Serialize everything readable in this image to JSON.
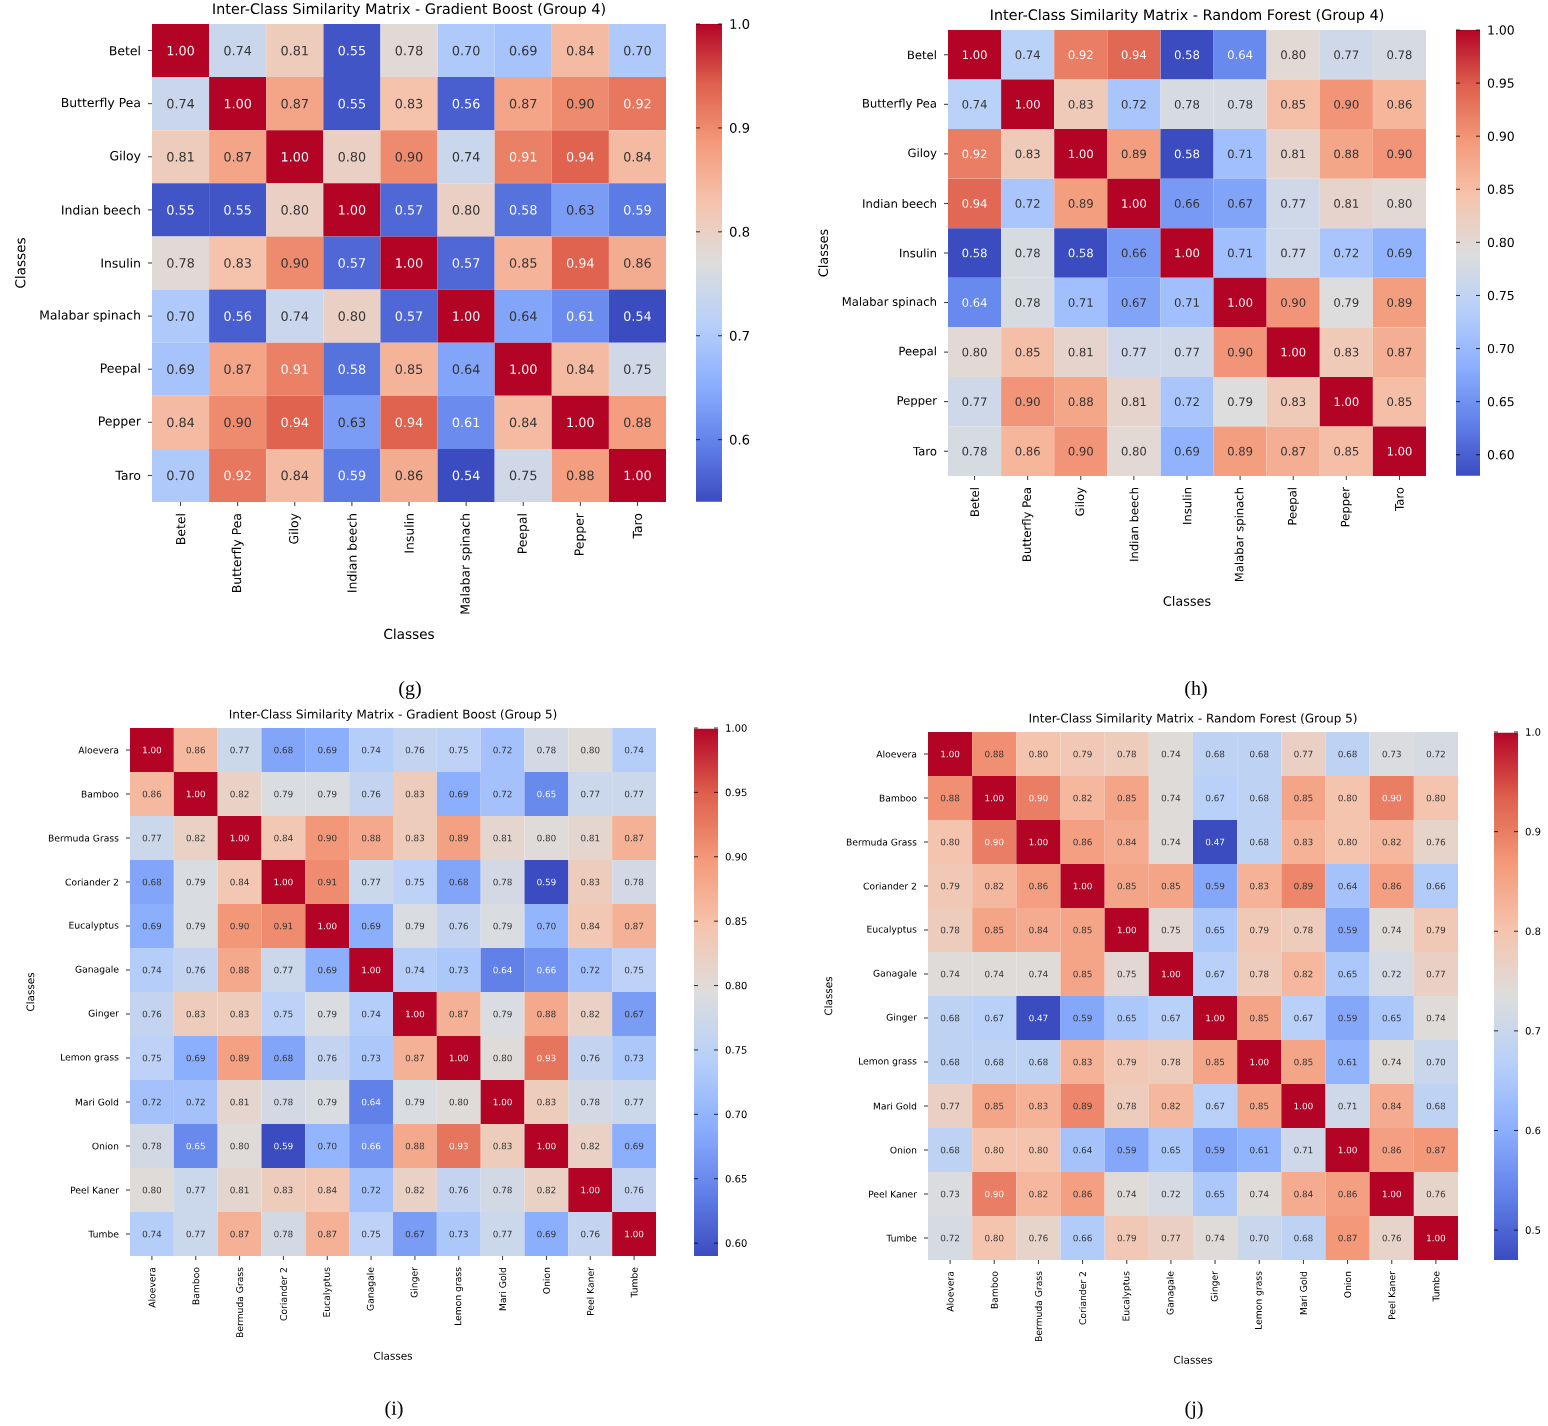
{
  "chart_data": [
    {
      "type": "heatmap",
      "title": "Inter-Class Similarity Matrix - Gradient Boost (Group 4)",
      "xlabel": "Classes",
      "ylabel": "Classes",
      "categories": [
        "Betel",
        "Butterfly Pea",
        "Giloy",
        "Indian beech",
        "Insulin",
        "Malabar spinach",
        "Peepal",
        "Pepper",
        "Taro"
      ],
      "y_categories": [
        "Betel",
        "Butterfly Pea",
        "Giloy",
        "Indian beech",
        "Insulin",
        "Malabar spinach",
        "Peepal",
        "Pepper",
        "Taro"
      ],
      "cells": [
        [
          1.0,
          0.74,
          0.81,
          0.55,
          0.78,
          0.7,
          0.69,
          0.84,
          0.7
        ],
        [
          0.74,
          1.0,
          0.87,
          0.55,
          0.83,
          0.56,
          0.87,
          0.9,
          0.92
        ],
        [
          0.81,
          0.87,
          1.0,
          0.8,
          0.9,
          0.74,
          0.91,
          0.94,
          0.84
        ],
        [
          0.55,
          0.55,
          0.8,
          1.0,
          0.57,
          0.8,
          0.58,
          0.63,
          0.59
        ],
        [
          0.78,
          0.83,
          0.9,
          0.57,
          1.0,
          0.57,
          0.85,
          0.94,
          0.86
        ],
        [
          0.7,
          0.56,
          0.74,
          0.8,
          0.57,
          1.0,
          0.64,
          0.61,
          0.54
        ],
        [
          0.69,
          0.87,
          0.91,
          0.58,
          0.85,
          0.64,
          1.0,
          0.84,
          0.75
        ],
        [
          0.84,
          0.9,
          0.94,
          0.63,
          0.94,
          0.61,
          0.84,
          1.0,
          0.88
        ],
        [
          0.7,
          0.92,
          0.84,
          0.59,
          0.86,
          0.54,
          0.75,
          0.88,
          1.0
        ]
      ],
      "cell_labels": [
        [
          "1.00",
          "0.74",
          "0.81",
          "0.55",
          "0.78",
          "0.70",
          "0.69",
          "0.84",
          "0.70"
        ],
        [
          "0.74",
          "1.00",
          "0.87",
          "0.55",
          "0.83",
          "0.56",
          "0.87",
          "0.90",
          "0.92"
        ],
        [
          "0.81",
          "0.87",
          "1.00",
          "0.80",
          "0.90",
          "0.74",
          "0.91",
          "0.94",
          "0.84"
        ],
        [
          "0.55",
          "0.55",
          "0.80",
          "1.00",
          "0.57",
          "0.80",
          "0.58",
          "0.63",
          "0.59"
        ],
        [
          "0.78",
          "0.83",
          "0.90",
          "0.57",
          "1.00",
          "0.57",
          "0.85",
          "0.94",
          "0.86"
        ],
        [
          "0.70",
          "0.56",
          "0.74",
          "0.80",
          "0.57",
          "1.00",
          "0.64",
          "0.61",
          "0.54"
        ],
        [
          "0.69",
          "0.87",
          "0.91",
          "0.58",
          "0.85",
          "0.64",
          "1.00",
          "0.84",
          "0.75"
        ],
        [
          "0.84",
          "0.90",
          "0.94",
          "0.63",
          "0.94",
          "0.61",
          "0.84",
          "1.00",
          "0.88"
        ],
        [
          "0.70",
          "0.92",
          "0.84",
          "0.59",
          "0.86",
          "0.54",
          "0.75",
          "0.88",
          "1.00"
        ]
      ],
      "clim": [
        0.54,
        1.0
      ],
      "cticks": [
        0.6,
        0.7,
        0.8,
        0.9,
        {
          "value": 1,
          "label": "1.0"
        }
      ],
      "annotations": [
        "(g)"
      ]
    },
    {
      "type": "heatmap",
      "title": "Inter-Class Similarity Matrix - Random Forest (Group 4)",
      "xlabel": "Classes",
      "ylabel": "Classes",
      "categories": [
        "Betel",
        "Butterfly Pea",
        "Giloy",
        "Indian beech",
        "Insulin",
        "Malabar spinach",
        "Peepal",
        "Pepper",
        "Taro"
      ],
      "y_categories": [
        "Betel",
        "Butterfly Pea",
        "Giloy",
        "Indian beech",
        "Insulin",
        "Malabar spinach",
        "Peepal",
        "Pepper",
        "Taro"
      ],
      "cells": [
        [
          1.0,
          0.74,
          0.92,
          0.94,
          0.58,
          0.64,
          0.8,
          0.77,
          0.78
        ],
        [
          0.74,
          1.0,
          0.83,
          0.72,
          0.78,
          0.78,
          0.85,
          0.9,
          0.86
        ],
        [
          0.92,
          0.83,
          1.0,
          0.89,
          0.58,
          0.71,
          0.81,
          0.88,
          0.9
        ],
        [
          0.94,
          0.72,
          0.89,
          1.0,
          0.66,
          0.67,
          0.77,
          0.81,
          0.8
        ],
        [
          0.58,
          0.78,
          0.58,
          0.66,
          1.0,
          0.71,
          0.77,
          0.72,
          0.69
        ],
        [
          0.64,
          0.78,
          0.71,
          0.67,
          0.71,
          1.0,
          0.9,
          0.79,
          0.89
        ],
        [
          0.8,
          0.85,
          0.81,
          0.77,
          0.77,
          0.9,
          1.0,
          0.83,
          0.87
        ],
        [
          0.77,
          0.9,
          0.88,
          0.81,
          0.72,
          0.79,
          0.83,
          1.0,
          0.85
        ],
        [
          0.78,
          0.86,
          0.9,
          0.8,
          0.69,
          0.89,
          0.87,
          0.85,
          1.0
        ]
      ],
      "cell_labels": [
        [
          "1.00",
          "0.74",
          "0.92",
          "0.94",
          "0.58",
          "0.64",
          "0.80",
          "0.77",
          "0.78"
        ],
        [
          "0.74",
          "1.00",
          "0.83",
          "0.72",
          "0.78",
          "0.78",
          "0.85",
          "0.90",
          "0.86"
        ],
        [
          "0.92",
          "0.83",
          "1.00",
          "0.89",
          "0.58",
          "0.71",
          "0.81",
          "0.88",
          "0.90"
        ],
        [
          "0.94",
          "0.72",
          "0.89",
          "1.00",
          "0.66",
          "0.67",
          "0.77",
          "0.81",
          "0.80"
        ],
        [
          "0.58",
          "0.78",
          "0.58",
          "0.66",
          "1.00",
          "0.71",
          "0.77",
          "0.72",
          "0.69"
        ],
        [
          "0.64",
          "0.78",
          "0.71",
          "0.67",
          "0.71",
          "1.00",
          "0.90",
          "0.79",
          "0.89"
        ],
        [
          "0.80",
          "0.85",
          "0.81",
          "0.77",
          "0.77",
          "0.90",
          "1.00",
          "0.83",
          "0.87"
        ],
        [
          "0.77",
          "0.90",
          "0.88",
          "0.81",
          "0.72",
          "0.79",
          "0.83",
          "1.00",
          "0.85"
        ],
        [
          "0.78",
          "0.86",
          "0.90",
          "0.80",
          "0.69",
          "0.89",
          "0.87",
          "0.85",
          "1.00"
        ]
      ],
      "clim": [
        0.58,
        1.0
      ],
      "cticks": [
        {
          "value": 0.6,
          "label": "0.60"
        },
        0.65,
        {
          "value": 0.7,
          "label": "0.70"
        },
        0.75,
        {
          "value": 0.8,
          "label": "0.80"
        },
        0.85,
        {
          "value": 0.9,
          "label": "0.90"
        },
        0.95,
        {
          "value": 1,
          "label": "1.00"
        }
      ],
      "annotations": [
        "(h)"
      ]
    },
    {
      "type": "heatmap",
      "title": "Inter-Class Similarity Matrix - Gradient Boost (Group 5)",
      "xlabel": "Classes",
      "ylabel": "Classes",
      "categories": [
        "Aloevera",
        "Bamboo",
        "Bermuda Grass",
        "Coriander 2",
        "Eucalyptus",
        "Ganagale",
        "Ginger",
        "Lemon grass",
        "Mari Gold",
        "Onion",
        "Peel Kaner",
        "Tumbe"
      ],
      "y_categories": [
        "Aloevera",
        "Bamboo",
        "Bermuda Grass",
        "Coriander 2",
        "Eucalyptus",
        "Ganagale",
        "Ginger",
        "Lemon grass",
        "Mari Gold",
        "Onion",
        "Peel Kaner",
        "Tumbe"
      ],
      "cells": [
        [
          1.0,
          0.86,
          0.77,
          0.68,
          0.69,
          0.74,
          0.76,
          0.75,
          0.72,
          0.78,
          0.8,
          0.74
        ],
        [
          0.86,
          1.0,
          0.82,
          0.79,
          0.79,
          0.76,
          0.83,
          0.69,
          0.72,
          0.65,
          0.77,
          0.77
        ],
        [
          0.77,
          0.82,
          1.0,
          0.84,
          0.9,
          0.88,
          0.83,
          0.89,
          0.81,
          0.8,
          0.81,
          0.87
        ],
        [
          0.68,
          0.79,
          0.84,
          1.0,
          0.91,
          0.77,
          0.75,
          0.68,
          0.78,
          0.59,
          0.83,
          0.78
        ],
        [
          0.69,
          0.79,
          0.9,
          0.91,
          1.0,
          0.69,
          0.79,
          0.76,
          0.79,
          0.7,
          0.84,
          0.87
        ],
        [
          0.74,
          0.76,
          0.88,
          0.77,
          0.69,
          1.0,
          0.74,
          0.73,
          0.64,
          0.66,
          0.72,
          0.75
        ],
        [
          0.76,
          0.83,
          0.83,
          0.75,
          0.79,
          0.74,
          1.0,
          0.87,
          0.79,
          0.88,
          0.82,
          0.67
        ],
        [
          0.75,
          0.69,
          0.89,
          0.68,
          0.76,
          0.73,
          0.87,
          1.0,
          0.8,
          0.93,
          0.76,
          0.73
        ],
        [
          0.72,
          0.72,
          0.81,
          0.78,
          0.79,
          0.64,
          0.79,
          0.8,
          1.0,
          0.83,
          0.78,
          0.77
        ],
        [
          0.78,
          0.65,
          0.8,
          0.59,
          0.7,
          0.66,
          0.88,
          0.93,
          0.83,
          1.0,
          0.82,
          0.69
        ],
        [
          0.8,
          0.77,
          0.81,
          0.83,
          0.84,
          0.72,
          0.82,
          0.76,
          0.78,
          0.82,
          1.0,
          0.76
        ],
        [
          0.74,
          0.77,
          0.87,
          0.78,
          0.87,
          0.75,
          0.67,
          0.73,
          0.77,
          0.69,
          0.76,
          1.0
        ]
      ],
      "cell_labels": [
        [
          "1.00",
          "0.86",
          "0.77",
          "0.68",
          "0.69",
          "0.74",
          "0.76",
          "0.75",
          "0.72",
          "0.78",
          "0.80",
          "0.74"
        ],
        [
          "0.86",
          "1.00",
          "0.82",
          "0.79",
          "0.79",
          "0.76",
          "0.83",
          "0.69",
          "0.72",
          "0.65",
          "0.77",
          "0.77"
        ],
        [
          "0.77",
          "0.82",
          "1.00",
          "0.84",
          "0.90",
          "0.88",
          "0.83",
          "0.89",
          "0.81",
          "0.80",
          "0.81",
          "0.87"
        ],
        [
          "0.68",
          "0.79",
          "0.84",
          "1.00",
          "0.91",
          "0.77",
          "0.75",
          "0.68",
          "0.78",
          "0.59",
          "0.83",
          "0.78"
        ],
        [
          "0.69",
          "0.79",
          "0.90",
          "0.91",
          "1.00",
          "0.69",
          "0.79",
          "0.76",
          "0.79",
          "0.70",
          "0.84",
          "0.87"
        ],
        [
          "0.74",
          "0.76",
          "0.88",
          "0.77",
          "0.69",
          "1.00",
          "0.74",
          "0.73",
          "0.64",
          "0.66",
          "0.72",
          "0.75"
        ],
        [
          "0.76",
          "0.83",
          "0.83",
          "0.75",
          "0.79",
          "0.74",
          "1.00",
          "0.87",
          "0.79",
          "0.88",
          "0.82",
          "0.67"
        ],
        [
          "0.75",
          "0.69",
          "0.89",
          "0.68",
          "0.76",
          "0.73",
          "0.87",
          "1.00",
          "0.80",
          "0.93",
          "0.76",
          "0.73"
        ],
        [
          "0.72",
          "0.72",
          "0.81",
          "0.78",
          "0.79",
          "0.64",
          "0.79",
          "0.80",
          "1.00",
          "0.83",
          "0.78",
          "0.77"
        ],
        [
          "0.78",
          "0.65",
          "0.80",
          "0.59",
          "0.70",
          "0.66",
          "0.88",
          "0.93",
          "0.83",
          "1.00",
          "0.82",
          "0.69"
        ],
        [
          "0.80",
          "0.77",
          "0.81",
          "0.83",
          "0.84",
          "0.72",
          "0.82",
          "0.76",
          "0.78",
          "0.82",
          "1.00",
          "0.76"
        ],
        [
          "0.74",
          "0.77",
          "0.87",
          "0.78",
          "0.87",
          "0.75",
          "0.67",
          "0.73",
          "0.77",
          "0.69",
          "0.76",
          "1.00"
        ]
      ],
      "clim": [
        0.59,
        1.0
      ],
      "cticks": [
        {
          "value": 0.6,
          "label": "0.60"
        },
        0.65,
        {
          "value": 0.7,
          "label": "0.70"
        },
        0.75,
        {
          "value": 0.8,
          "label": "0.80"
        },
        0.85,
        {
          "value": 0.9,
          "label": "0.90"
        },
        0.95,
        {
          "value": 1,
          "label": "1.00"
        }
      ],
      "annotations": [
        "(i)"
      ]
    },
    {
      "type": "heatmap",
      "title": "Inter-Class Similarity Matrix - Random Forest (Group 5)",
      "xlabel": "Classes",
      "ylabel": "Classes",
      "categories": [
        "Aloevera",
        "Bamboo",
        "Bermuda Grass",
        "Coriander 2",
        "Eucalyptus",
        "Ganagale",
        "Ginger",
        "Lemon grass",
        "Mari Gold",
        "Onion",
        "Peel Kaner",
        "Tumbe"
      ],
      "y_categories": [
        "Aloevera",
        "Bamboo",
        "Bermuda Grass",
        "Coriander 2",
        "Eucalyptus",
        "Ganagale",
        "Ginger",
        "Lemon grass",
        "Mari Gold",
        "Onion",
        "Peel Kaner",
        "Tumbe"
      ],
      "cells": [
        [
          1.0,
          0.88,
          0.8,
          0.79,
          0.78,
          0.74,
          0.68,
          0.68,
          0.77,
          0.68,
          0.73,
          0.72
        ],
        [
          0.88,
          1.0,
          0.9,
          0.82,
          0.85,
          0.74,
          0.67,
          0.68,
          0.85,
          0.8,
          0.9,
          0.8
        ],
        [
          0.8,
          0.9,
          1.0,
          0.86,
          0.84,
          0.74,
          0.47,
          0.68,
          0.83,
          0.8,
          0.82,
          0.76
        ],
        [
          0.79,
          0.82,
          0.86,
          1.0,
          0.85,
          0.85,
          0.59,
          0.83,
          0.89,
          0.64,
          0.86,
          0.66
        ],
        [
          0.78,
          0.85,
          0.84,
          0.85,
          1.0,
          0.75,
          0.65,
          0.79,
          0.78,
          0.59,
          0.74,
          0.79
        ],
        [
          0.74,
          0.74,
          0.74,
          0.85,
          0.75,
          1.0,
          0.67,
          0.78,
          0.82,
          0.65,
          0.72,
          0.77
        ],
        [
          0.68,
          0.67,
          0.47,
          0.59,
          0.65,
          0.67,
          1.0,
          0.85,
          0.67,
          0.59,
          0.65,
          0.74
        ],
        [
          0.68,
          0.68,
          0.68,
          0.83,
          0.79,
          0.78,
          0.85,
          1.0,
          0.85,
          0.61,
          0.74,
          0.7
        ],
        [
          0.77,
          0.85,
          0.83,
          0.89,
          0.78,
          0.82,
          0.67,
          0.85,
          1.0,
          0.71,
          0.84,
          0.68
        ],
        [
          0.68,
          0.8,
          0.8,
          0.64,
          0.59,
          0.65,
          0.59,
          0.61,
          0.71,
          1.0,
          0.86,
          0.87
        ],
        [
          0.73,
          0.9,
          0.82,
          0.86,
          0.74,
          0.72,
          0.65,
          0.74,
          0.84,
          0.86,
          1.0,
          0.76
        ],
        [
          0.72,
          0.8,
          0.76,
          0.66,
          0.79,
          0.77,
          0.74,
          0.7,
          0.68,
          0.87,
          0.76,
          1.0
        ]
      ],
      "cell_labels": [
        [
          "1.00",
          "0.88",
          "0.80",
          "0.79",
          "0.78",
          "0.74",
          "0.68",
          "0.68",
          "0.77",
          "0.68",
          "0.73",
          "0.72"
        ],
        [
          "0.88",
          "1.00",
          "0.90",
          "0.82",
          "0.85",
          "0.74",
          "0.67",
          "0.68",
          "0.85",
          "0.80",
          "0.90",
          "0.80"
        ],
        [
          "0.80",
          "0.90",
          "1.00",
          "0.86",
          "0.84",
          "0.74",
          "0.47",
          "0.68",
          "0.83",
          "0.80",
          "0.82",
          "0.76"
        ],
        [
          "0.79",
          "0.82",
          "0.86",
          "1.00",
          "0.85",
          "0.85",
          "0.59",
          "0.83",
          "0.89",
          "0.64",
          "0.86",
          "0.66"
        ],
        [
          "0.78",
          "0.85",
          "0.84",
          "0.85",
          "1.00",
          "0.75",
          "0.65",
          "0.79",
          "0.78",
          "0.59",
          "0.74",
          "0.79"
        ],
        [
          "0.74",
          "0.74",
          "0.74",
          "0.85",
          "0.75",
          "1.00",
          "0.67",
          "0.78",
          "0.82",
          "0.65",
          "0.72",
          "0.77"
        ],
        [
          "0.68",
          "0.67",
          "0.47",
          "0.59",
          "0.65",
          "0.67",
          "1.00",
          "0.85",
          "0.67",
          "0.59",
          "0.65",
          "0.74"
        ],
        [
          "0.68",
          "0.68",
          "0.68",
          "0.83",
          "0.79",
          "0.78",
          "0.85",
          "1.00",
          "0.85",
          "0.61",
          "0.74",
          "0.70"
        ],
        [
          "0.77",
          "0.85",
          "0.83",
          "0.89",
          "0.78",
          "0.82",
          "0.67",
          "0.85",
          "1.00",
          "0.71",
          "0.84",
          "0.68"
        ],
        [
          "0.68",
          "0.80",
          "0.80",
          "0.64",
          "0.59",
          "0.65",
          "0.59",
          "0.61",
          "0.71",
          "1.00",
          "0.86",
          "0.87"
        ],
        [
          "0.73",
          "0.90",
          "0.82",
          "0.86",
          "0.74",
          "0.72",
          "0.65",
          "0.74",
          "0.84",
          "0.86",
          "1.00",
          "0.76"
        ],
        [
          "0.72",
          "0.80",
          "0.76",
          "0.66",
          "0.79",
          "0.77",
          "0.74",
          "0.70",
          "0.68",
          "0.87",
          "0.76",
          "1.00"
        ]
      ],
      "clim": [
        0.47,
        1.0
      ],
      "cticks": [
        0.5,
        0.6,
        0.7,
        0.8,
        0.9,
        {
          "value": 1,
          "label": "1.0"
        }
      ],
      "annotations": [
        "(j)"
      ]
    }
  ]
}
